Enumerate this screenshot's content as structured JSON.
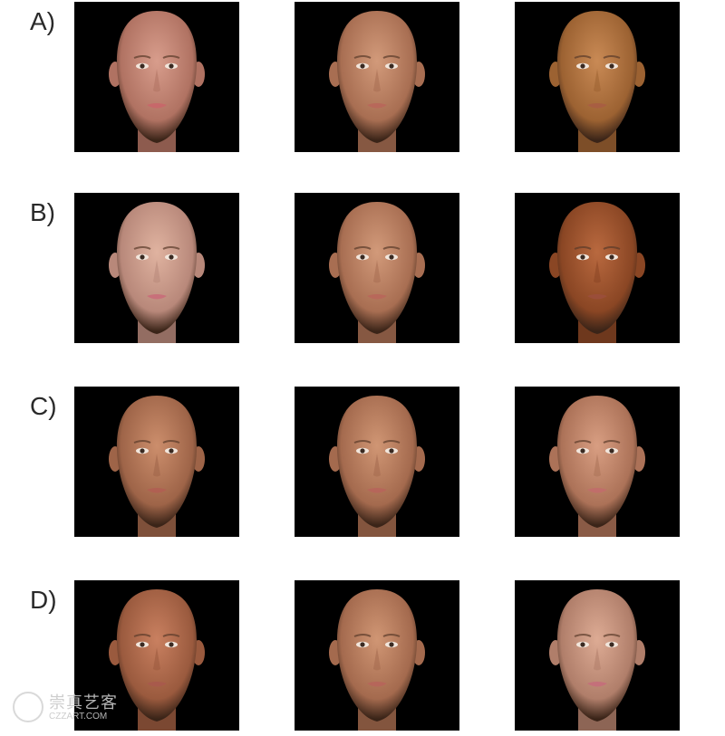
{
  "rows": [
    {
      "label": "A)",
      "faces": [
        {
          "skin": "#d89d8c",
          "shade": "#b07262",
          "lip": "#c7686a"
        },
        {
          "skin": "#d29a7a",
          "shade": "#a86e52",
          "lip": "#b8685a"
        },
        {
          "skin": "#c98a55",
          "shade": "#9c6232",
          "lip": "#a85e42"
        }
      ]
    },
    {
      "label": "B)",
      "faces": [
        {
          "skin": "#e0b3a0",
          "shade": "#b8887a",
          "lip": "#c8707a"
        },
        {
          "skin": "#d29a7a",
          "shade": "#a86e52",
          "lip": "#b8685a"
        },
        {
          "skin": "#b9693f",
          "shade": "#8a4624",
          "lip": "#9a4e3a"
        }
      ]
    },
    {
      "label": "C)",
      "faces": [
        {
          "skin": "#cc8e6c",
          "shade": "#9e6448",
          "lip": "#b06052"
        },
        {
          "skin": "#d09674",
          "shade": "#a46a4e",
          "lip": "#b6665a"
        },
        {
          "skin": "#d89e82",
          "shade": "#ac7258",
          "lip": "#c06e6a"
        }
      ]
    },
    {
      "label": "D)",
      "faces": [
        {
          "skin": "#c98060",
          "shade": "#9a5a3e",
          "lip": "#a85a4c"
        },
        {
          "skin": "#d09674",
          "shade": "#a46a4e",
          "lip": "#b6665a"
        },
        {
          "skin": "#ddab94",
          "shade": "#b07e6a",
          "lip": "#c4707a"
        }
      ]
    }
  ],
  "watermark": {
    "cn": "崇真艺客",
    "en": "CZZART.COM"
  }
}
